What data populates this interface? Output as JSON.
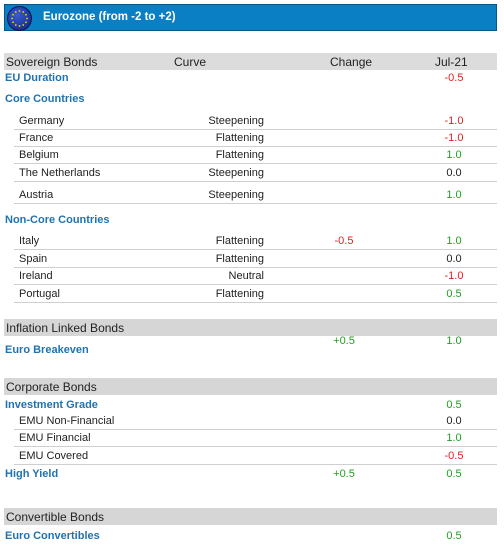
{
  "header": {
    "title": "Eurozone (from -2 to +2)"
  },
  "colors": {
    "header_bg": "#0a7fc4",
    "category": "#1f73b0",
    "negative": "#e02020",
    "positive": "#20a020"
  },
  "sovereign": {
    "col_labels": {
      "name": "Sovereign Bonds",
      "curve": "Curve",
      "change": "Change",
      "value": "Jul-21"
    },
    "eu_duration": {
      "label": "EU Duration",
      "value": "-0.5"
    },
    "core": {
      "label": "Core Countries",
      "rows": [
        {
          "name": "Germany",
          "curve": "Steepening",
          "value": "-1.0"
        },
        {
          "name": "France",
          "curve": "Flattening",
          "value": "-1.0"
        },
        {
          "name": "Belgium",
          "curve": "Flattening",
          "value": "1.0"
        },
        {
          "name": "The Netherlands",
          "curve": "Steepening",
          "value": "0.0"
        },
        {
          "name": "Austria",
          "curve": "Steepening",
          "value": "1.0"
        }
      ]
    },
    "noncore": {
      "label": "Non-Core Countries",
      "rows": [
        {
          "name": "Italy",
          "curve": "Flattening",
          "change": "-0.5",
          "value": "1.0"
        },
        {
          "name": "Spain",
          "curve": "Flattening",
          "value": "0.0"
        },
        {
          "name": "Ireland",
          "curve": "Neutral",
          "value": "-1.0"
        },
        {
          "name": "Portugal",
          "curve": "Flattening",
          "value": "0.5"
        }
      ]
    }
  },
  "inflation": {
    "title": "Inflation Linked Bonds",
    "label": "Euro Breakeven",
    "change": "+0.5",
    "value": "1.0"
  },
  "corporate": {
    "title": "Corporate Bonds",
    "ig": {
      "label": "Investment Grade",
      "value": "0.5"
    },
    "rows": [
      {
        "name": "EMU Non-Financial",
        "value": "0.0"
      },
      {
        "name": "EMU Financial",
        "value": "1.0"
      },
      {
        "name": "EMU Covered",
        "value": "-0.5"
      }
    ],
    "hy": {
      "label": "High Yield",
      "change": "+0.5",
      "value": "0.5"
    }
  },
  "convertible": {
    "title": "Convertible Bonds",
    "label": "Euro Convertibles",
    "value": "0.5"
  }
}
